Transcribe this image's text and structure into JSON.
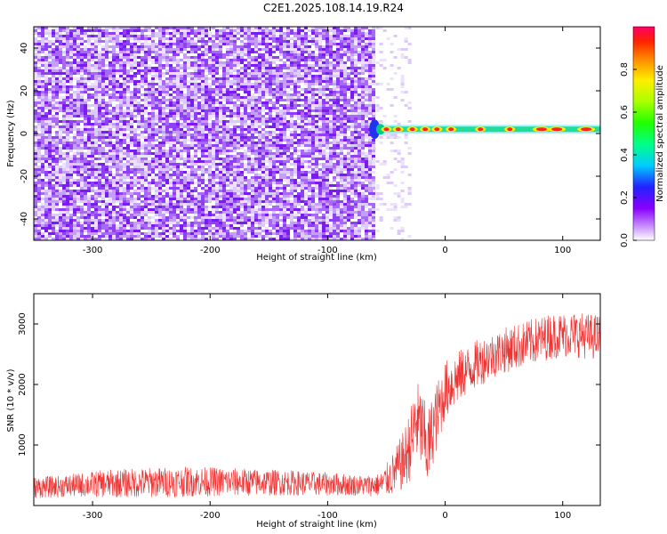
{
  "title": "C2E1.2025.108.14.19.R24",
  "chart_data": [
    {
      "type": "heatmap",
      "xlabel": "Height of straight line (km)",
      "ylabel": "Frequency (Hz)",
      "xlim": [
        -350,
        132
      ],
      "ylim": [
        -50,
        50
      ],
      "xticks": [
        -300,
        -200,
        -100,
        0,
        100
      ],
      "yticks": [
        -40,
        -20,
        0,
        20,
        40
      ],
      "colorbar": {
        "label": "Normalized spectral amplitude",
        "range": [
          0,
          1
        ],
        "ticks": [
          0.0,
          0.2,
          0.4,
          0.6,
          0.8
        ]
      },
      "noise_region_x": [
        -350,
        -62
      ],
      "signal_band": {
        "x": [
          -64,
          132
        ],
        "frequency_hz": 2,
        "peaks_x": [
          -50,
          -40,
          -28,
          -17,
          -7,
          5,
          30,
          55,
          82,
          95,
          120
        ]
      }
    },
    {
      "type": "line",
      "xlabel": "Height of straight line (km)",
      "ylabel": "SNR (10 * v/v)",
      "xlim": [
        -350,
        132
      ],
      "ylim": [
        0,
        3500
      ],
      "xticks": [
        -300,
        -200,
        -100,
        0,
        100
      ],
      "yticks": [
        1000,
        2000,
        3000
      ],
      "color": "#ee3333",
      "x": [
        -350,
        -330,
        -310,
        -290,
        -270,
        -250,
        -230,
        -210,
        -190,
        -170,
        -150,
        -130,
        -110,
        -90,
        -70,
        -55,
        -45,
        -35,
        -28,
        -25,
        -20,
        -15,
        -10,
        -5,
        0,
        10,
        20,
        30,
        40,
        50,
        60,
        70,
        80,
        90,
        100,
        110,
        120,
        132
      ],
      "y": [
        300,
        310,
        340,
        360,
        370,
        380,
        390,
        395,
        390,
        385,
        380,
        375,
        360,
        350,
        330,
        340,
        500,
        750,
        1100,
        1400,
        1250,
        900,
        1300,
        1600,
        1900,
        2100,
        2250,
        2380,
        2480,
        2560,
        2620,
        2680,
        2740,
        2800,
        2820,
        2830,
        2800,
        2780
      ],
      "noise_amplitude": [
        180,
        180,
        200,
        230,
        240,
        250,
        250,
        250,
        240,
        230,
        220,
        210,
        200,
        190,
        170,
        200,
        350,
        500,
        650,
        700,
        700,
        650,
        600,
        550,
        500,
        450,
        400,
        400,
        380,
        380,
        380,
        380,
        380,
        380,
        380,
        380,
        380,
        380
      ]
    }
  ]
}
